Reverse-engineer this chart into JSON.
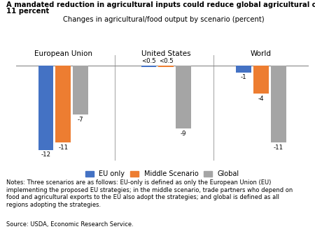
{
  "title_line1": "A mandated reduction in agricultural inputs could reduce global agricultural output up to",
  "title_line2": "11 percent",
  "subtitle": "Changes in agricultural/food output by scenario (percent)",
  "regions": [
    "European Union",
    "United States",
    "World"
  ],
  "scenarios": [
    "EU only",
    "Middle Scenario",
    "Global"
  ],
  "colors": [
    "#4472C4",
    "#ED7D31",
    "#A5A5A5"
  ],
  "values": {
    "European Union": [
      -12,
      -11,
      -7
    ],
    "United States": [
      -0.25,
      -0.25,
      -9
    ],
    "World": [
      -1,
      -4,
      -11
    ]
  },
  "bar_labels": {
    "European Union": [
      "-12",
      "-11",
      "-7"
    ],
    "United States": [
      "<0.5",
      "<0.5",
      "-9"
    ],
    "World": [
      "-1",
      "-4",
      "-11"
    ]
  },
  "notes": "Notes: Three scenarios are as follows: EU-only is defined as only the European Union (EU)\nimplementing the proposed EU strategies; in the middle scenario, trade partners who depend on\nfood and agricultural exports to the EU also adopt the strategies; and global is defined as all\nregions adopting the strategies.",
  "source": "Source: USDA, Economic Research Service.",
  "ylim": [
    -13.5,
    1.5
  ],
  "group_positions": [
    0.35,
    1.65,
    2.85
  ],
  "bar_width": 0.22,
  "figsize": [
    4.5,
    3.28
  ],
  "dpi": 100
}
